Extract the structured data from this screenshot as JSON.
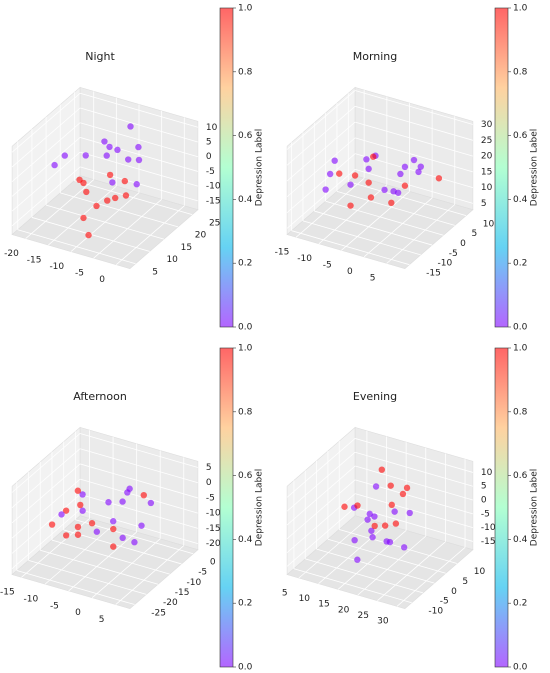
{
  "chart_data": [
    {
      "type": "scatter3d",
      "title": "Night",
      "x": [
        -18,
        -15,
        -12,
        -10,
        -8,
        -6,
        -4,
        -14,
        -11,
        -9,
        -7,
        -5,
        -16,
        -13,
        -3,
        -10,
        -8,
        -12,
        -6,
        -17,
        -9,
        -11,
        -7,
        -5
      ],
      "y": [
        10,
        14,
        18,
        12,
        20,
        16,
        8,
        22,
        9,
        15,
        11,
        19,
        17,
        13,
        15,
        24,
        6,
        20,
        13,
        12,
        17,
        10,
        22,
        14
      ],
      "z": [
        2,
        -5,
        6,
        -10,
        0,
        -8,
        4,
        -3,
        -12,
        8,
        -6,
        2,
        -9,
        5,
        -2,
        7,
        -14,
        -7,
        10,
        4,
        -11,
        -4,
        3,
        -1
      ],
      "values": [
        0,
        1,
        0,
        1,
        0,
        1,
        0,
        0,
        1,
        0,
        1,
        0,
        1,
        0,
        0,
        0,
        1,
        1,
        0,
        0,
        1,
        1,
        0,
        1
      ],
      "xlim": [
        -23,
        3
      ],
      "xticks": [
        -20,
        -15,
        -10,
        -5,
        0
      ],
      "ylim": [
        3,
        27
      ],
      "yticks": [
        5,
        10,
        15,
        20,
        25
      ],
      "zlim": [
        -18,
        12
      ],
      "zticks": [
        -15,
        -10,
        -5,
        0,
        5,
        10
      ],
      "colorbar": {
        "label": "Depression Label",
        "lim": [
          0,
          1
        ],
        "colors": [
          "#8000ff",
          "#00b5eb",
          "#80ffb4",
          "#ffb360",
          "#ff0000"
        ],
        "ticks": [
          {
            "value": 0,
            "label": "0.0"
          },
          {
            "value": 0.2,
            "label": "0.2"
          },
          {
            "value": 0.4,
            "label": "0.4"
          },
          {
            "value": 0.6,
            "label": "0.6"
          },
          {
            "value": 0.8,
            "label": "0.8"
          },
          {
            "value": 1,
            "label": "1.0"
          }
        ]
      }
    },
    {
      "type": "scatter3d",
      "title": "Morning",
      "x": [
        -12,
        -8,
        -4,
        0,
        4,
        -10,
        -6,
        -2,
        2,
        -14,
        -9,
        -5,
        -1,
        3,
        -11,
        -7,
        -3,
        1,
        -13,
        -8,
        -4,
        0,
        -6,
        -2
      ],
      "y": [
        -10,
        -5,
        0,
        5,
        8,
        -12,
        -2,
        3,
        -8,
        0,
        6,
        -6,
        -3,
        2,
        9,
        -9,
        4,
        -1,
        -4,
        1,
        -7,
        7,
        -11,
        5
      ],
      "z": [
        15,
        18,
        12,
        20,
        14,
        22,
        10,
        16,
        19,
        13,
        17,
        25,
        11,
        21,
        14,
        18,
        9,
        16,
        20,
        12,
        23,
        15,
        13,
        17
      ],
      "values": [
        0,
        1,
        0,
        0,
        1,
        0,
        1,
        0,
        0,
        1,
        0,
        0,
        1,
        0,
        1,
        0,
        0,
        1,
        0,
        1,
        0,
        0,
        1,
        0
      ],
      "xlim": [
        -17,
        9
      ],
      "xticks": [
        -15,
        -10,
        -5,
        0,
        5
      ],
      "ylim": [
        -17,
        13
      ],
      "yticks": [
        -15,
        -10,
        -5,
        0,
        5,
        10
      ],
      "zlim": [
        3,
        31
      ],
      "zticks": [
        5,
        10,
        15,
        20,
        25,
        30
      ],
      "colorbar": {
        "label": "Depression Label",
        "lim": [
          0,
          1
        ],
        "colors": [
          "#8000ff",
          "#00b5eb",
          "#80ffb4",
          "#ffb360",
          "#ff0000"
        ],
        "ticks": [
          {
            "value": 0,
            "label": "0.0"
          },
          {
            "value": 0.2,
            "label": "0.2"
          },
          {
            "value": 0.4,
            "label": "0.4"
          },
          {
            "value": 0.6,
            "label": "0.6"
          },
          {
            "value": 0.8,
            "label": "0.8"
          },
          {
            "value": 1,
            "label": "1.0"
          }
        ]
      }
    },
    {
      "type": "scatter3d",
      "title": "Afternoon",
      "x": [
        -12,
        -8,
        -4,
        0,
        3,
        -10,
        -6,
        -2,
        2,
        -14,
        -9,
        -5,
        -1,
        -11,
        -7,
        -3,
        1,
        -13,
        -8,
        -4,
        0,
        -6,
        -2,
        -10
      ],
      "y": [
        -20,
        -15,
        -10,
        -5,
        -12,
        -18,
        -8,
        -14,
        -6,
        -10,
        -22,
        -4,
        -16,
        -9,
        -13,
        -19,
        -11,
        -7,
        -17,
        -3,
        -14,
        -21,
        -8,
        -12
      ],
      "z": [
        -8,
        -5,
        -10,
        -3,
        -7,
        -12,
        -6,
        -9,
        -4,
        -11,
        -2,
        -8,
        -13,
        -5,
        -10,
        -7,
        -14,
        -6,
        -9,
        -4,
        -11,
        -8,
        -1,
        -6
      ],
      "values": [
        1,
        0,
        0,
        1,
        0,
        1,
        0,
        1,
        0,
        1,
        0,
        0,
        1,
        0,
        1,
        0,
        0,
        1,
        1,
        0,
        0,
        1,
        0,
        1
      ],
      "xlim": [
        -17,
        8
      ],
      "xticks": [
        -15,
        -10,
        -5,
        0,
        5
      ],
      "ylim": [
        -27,
        2
      ],
      "yticks": [
        -25,
        -20,
        -15,
        -10,
        -5,
        0
      ],
      "zlim": [
        -22,
        7
      ],
      "zticks": [
        -20,
        -15,
        -10,
        -5,
        0,
        5
      ],
      "colorbar": {
        "label": "Depression Label",
        "lim": [
          0,
          1
        ],
        "colors": [
          "#8000ff",
          "#00b5eb",
          "#80ffb4",
          "#ffb360",
          "#ff0000"
        ],
        "ticks": [
          {
            "value": 0,
            "label": "0.0"
          },
          {
            "value": 0.2,
            "label": "0.2"
          },
          {
            "value": 0.4,
            "label": "0.4"
          },
          {
            "value": 0.6,
            "label": "0.6"
          },
          {
            "value": 0.8,
            "label": "0.8"
          },
          {
            "value": 1,
            "label": "1.0"
          }
        ]
      }
    },
    {
      "type": "scatter3d",
      "title": "Evening",
      "x": [
        12,
        15,
        18,
        21,
        24,
        14,
        17,
        20,
        23,
        11,
        16,
        19,
        22,
        13,
        18,
        21,
        15,
        20,
        17,
        24,
        19,
        14,
        22,
        16
      ],
      "y": [
        -5,
        0,
        5,
        -2,
        3,
        8,
        -8,
        2,
        -4,
        1,
        6,
        -6,
        4,
        -1,
        -3,
        7,
        3,
        -7,
        9,
        0,
        5,
        -4,
        -9,
        2
      ],
      "z": [
        5,
        -2,
        8,
        -6,
        2,
        10,
        -10,
        4,
        -4,
        0,
        -8,
        6,
        -12,
        3,
        -5,
        7,
        -3,
        1,
        -9,
        11,
        -1,
        -7,
        5,
        9
      ],
      "values": [
        1,
        0,
        1,
        0,
        0,
        1,
        0,
        1,
        0,
        0,
        1,
        0,
        0,
        1,
        0,
        1,
        0,
        0,
        1,
        1,
        0,
        0,
        1,
        0
      ],
      "xlim": [
        2,
        32
      ],
      "xticks": [
        5,
        10,
        15,
        20,
        25,
        30
      ],
      "ylim": [
        -13,
        17
      ],
      "yticks": [
        -10,
        -5,
        0,
        5,
        10
      ],
      "zlim": [
        -18,
        14
      ],
      "zticks": [
        -15,
        -10,
        -5,
        0,
        5,
        10
      ],
      "colorbar": {
        "label": "Depression Label",
        "lim": [
          0,
          1
        ],
        "colors": [
          "#8000ff",
          "#00b5eb",
          "#80ffb4",
          "#ffb360",
          "#ff0000"
        ],
        "ticks": [
          {
            "value": 0,
            "label": "0.0"
          },
          {
            "value": 0.2,
            "label": "0.2"
          },
          {
            "value": 0.4,
            "label": "0.4"
          },
          {
            "value": 0.6,
            "label": "0.6"
          },
          {
            "value": 0.8,
            "label": "0.8"
          },
          {
            "value": 1,
            "label": "1.0"
          }
        ]
      }
    }
  ]
}
